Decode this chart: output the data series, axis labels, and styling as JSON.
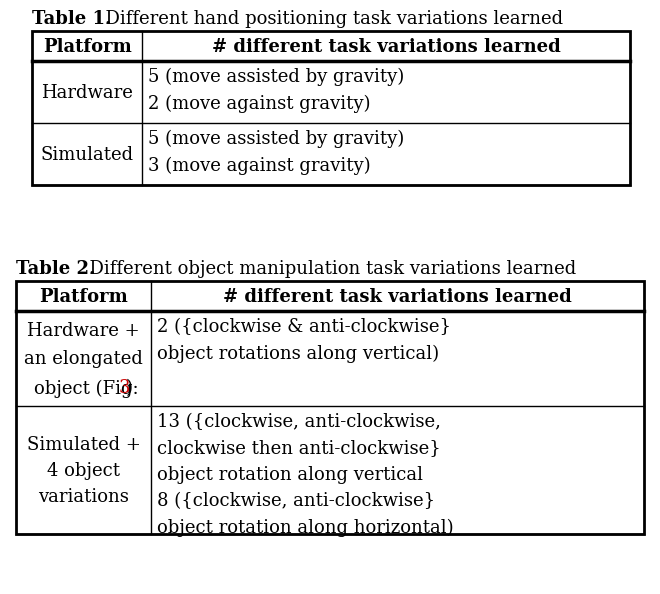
{
  "table1_title_bold": "Table 1.",
  "table1_title_rest": "  Different hand positioning task variations learned",
  "table1_header": [
    "Platform",
    "# different task variations learned"
  ],
  "table1_rows": [
    [
      "Hardware",
      "5 (move assisted by gravity)\n2 (move against gravity)"
    ],
    [
      "Simulated",
      "5 (move assisted by gravity)\n3 (move against gravity)"
    ]
  ],
  "table2_title_bold": "Table 2.",
  "table2_title_rest": "  Different object manipulation task variations learned",
  "table2_header": [
    "Platform",
    "# different task variations learned"
  ],
  "table2_row0_col0_lines": [
    "Hardware +",
    "an elongated",
    "object (Fig:"
  ],
  "table2_row0_col0_red": "3",
  "table2_row0_col0_end": ")",
  "table2_row0_col1": "2 ({clockwise & anti-clockwise}\nobject rotations along vertical)",
  "table2_row1_col0": "Simulated +\n4 object\nvariations",
  "table2_row1_col1": "13 ({clockwise, anti-clockwise,\nclockwise then anti-clockwise}\nobject rotation along vertical\n8 ({clockwise, anti-clockwise}\nobject rotation along horizontal)",
  "fig3_color": "#cc0000",
  "bg_color": "#ffffff",
  "font_size": 13,
  "title_font_size": 13,
  "header_font_size": 13
}
